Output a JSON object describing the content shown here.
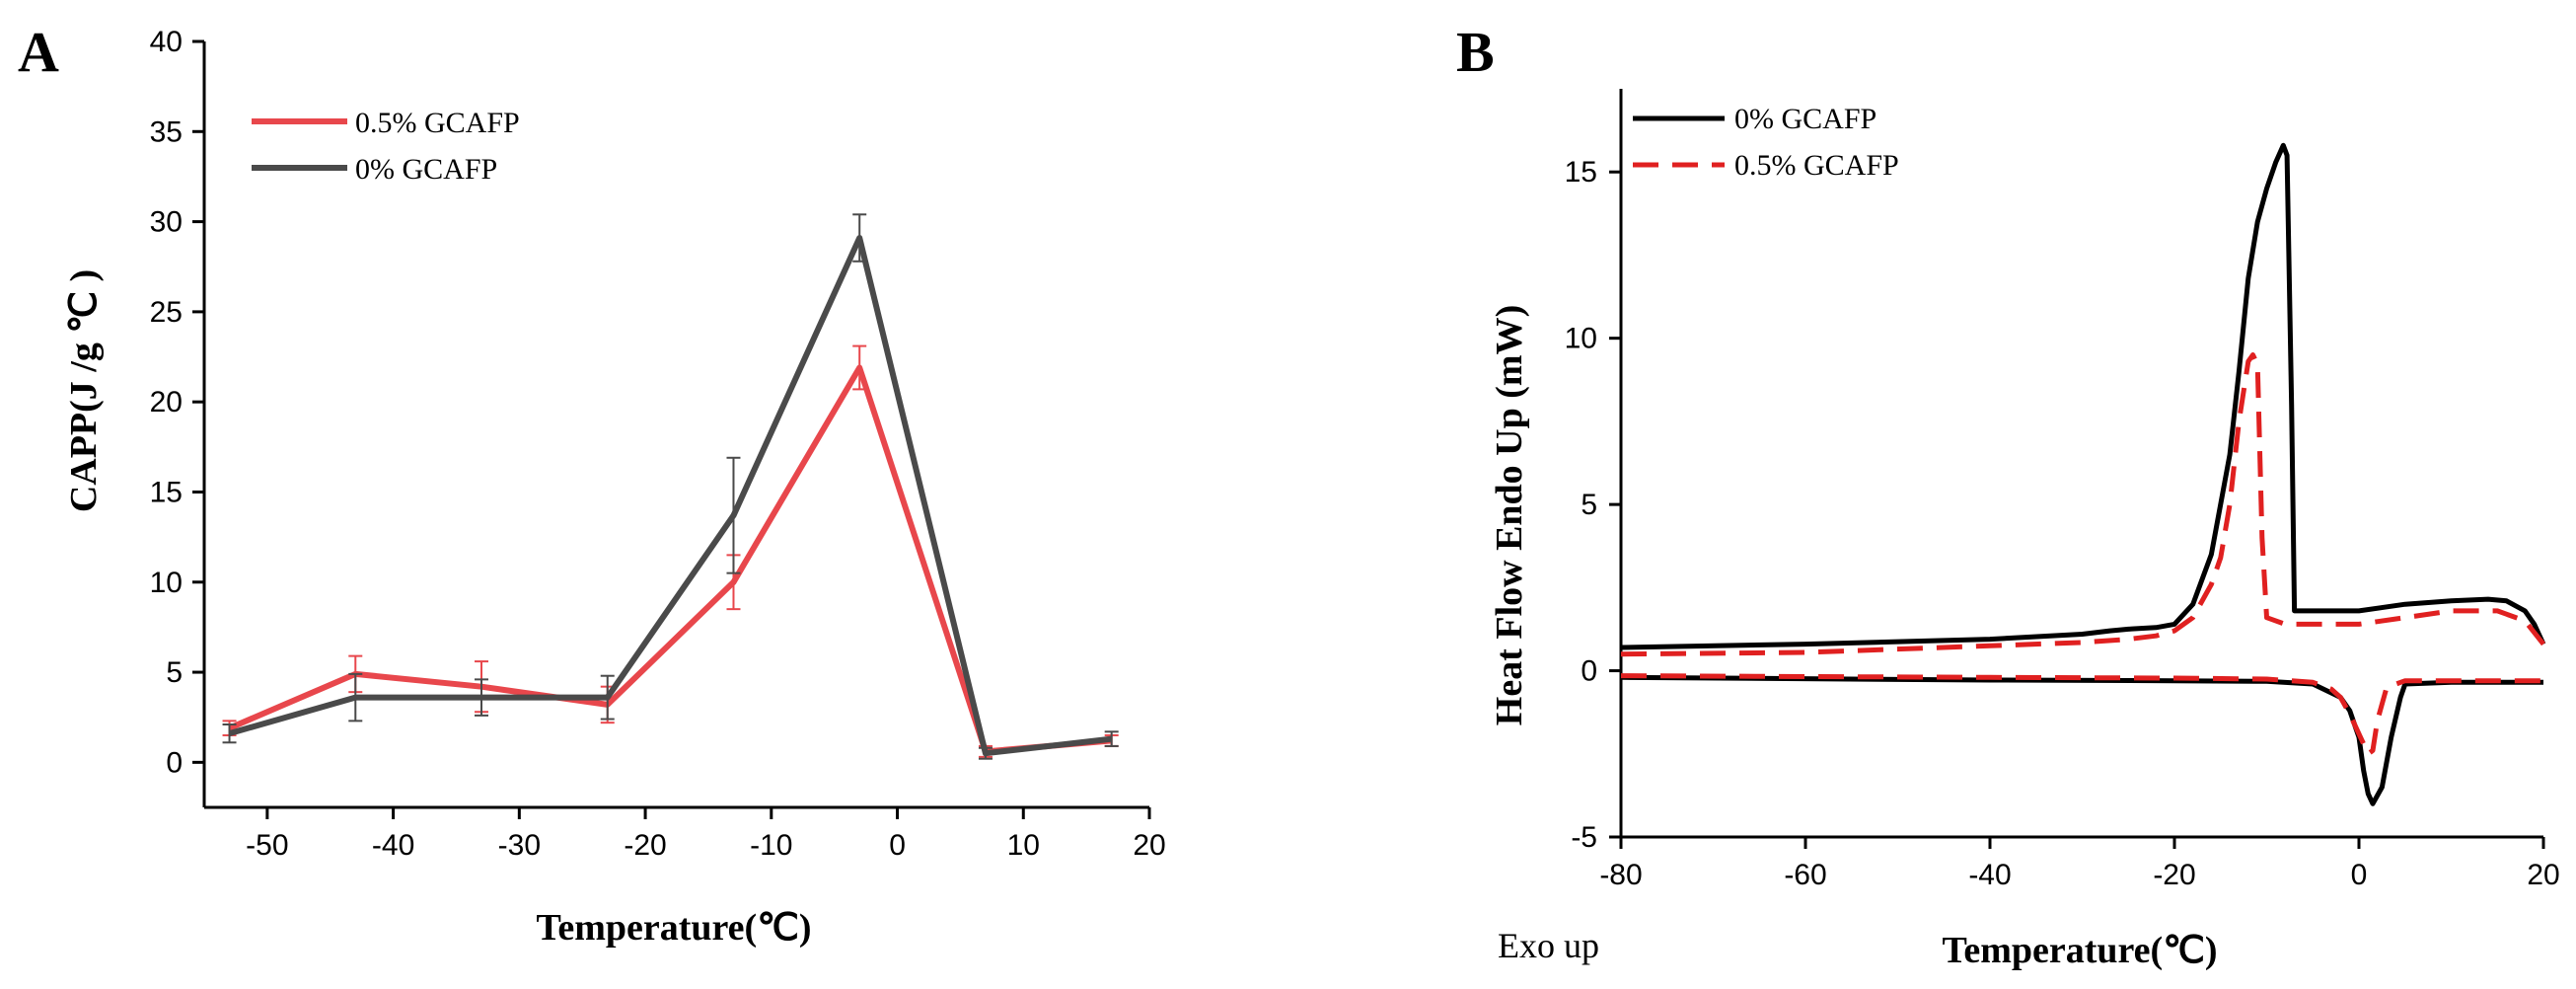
{
  "chart_data": [
    {
      "panel": "A",
      "type": "line",
      "title": "",
      "xlabel": "Temperature(℃)",
      "ylabel": "CAPP(J /g ℃ )",
      "xlim": [
        -55,
        20
      ],
      "ylim": [
        -2.5,
        40
      ],
      "xticks": [
        -50,
        -40,
        -30,
        -20,
        -10,
        0,
        10,
        20
      ],
      "yticks": [
        0,
        5,
        10,
        15,
        20,
        25,
        30,
        35,
        40
      ],
      "legend_position": "top-left",
      "series": [
        {
          "name": "0.5% GCAFP",
          "color": "#e8474c",
          "x": [
            -53,
            -43,
            -33,
            -23,
            -13,
            -3,
            7,
            17
          ],
          "y": [
            1.9,
            4.9,
            4.2,
            3.2,
            10.0,
            21.9,
            0.6,
            1.2
          ],
          "err": [
            0.4,
            1.0,
            1.4,
            1.0,
            1.5,
            1.2,
            0.3,
            0.3
          ]
        },
        {
          "name": "0%   GCAFP",
          "color": "#4a4a4a",
          "x": [
            -53,
            -43,
            -33,
            -23,
            -13,
            -3,
            7,
            17
          ],
          "y": [
            1.6,
            3.6,
            3.6,
            3.6,
            13.7,
            29.1,
            0.5,
            1.3
          ],
          "err": [
            0.5,
            1.3,
            1.0,
            1.2,
            3.2,
            1.3,
            0.3,
            0.4
          ]
        }
      ]
    },
    {
      "panel": "B",
      "type": "line",
      "title": "",
      "xlabel": "Temperature(℃)",
      "ylabel": "Heat Flow Endo Up (mW)",
      "annotation": "Exo up",
      "xlim": [
        -80,
        20
      ],
      "ylim": [
        -5,
        17.5
      ],
      "xticks": [
        -80,
        -60,
        -40,
        -20,
        0,
        20
      ],
      "yticks": [
        -5,
        0,
        5,
        10,
        15
      ],
      "legend_position": "top-left",
      "series": [
        {
          "name": "0% GCAFP",
          "color": "#000000",
          "dash": "solid",
          "heating": {
            "x": [
              -80,
              -60,
              -40,
              -30,
              -27,
              -25,
              -22,
              -20,
              -18,
              -16,
              -14,
              -13,
              -12,
              -11,
              -10,
              -9,
              -8.2,
              -7.8,
              -7.3,
              -7,
              0,
              5,
              10,
              14,
              16,
              18,
              19,
              20
            ],
            "y": [
              0.7,
              0.8,
              0.95,
              1.1,
              1.2,
              1.25,
              1.3,
              1.4,
              2.0,
              3.5,
              6.5,
              9.0,
              11.8,
              13.5,
              14.5,
              15.3,
              15.8,
              15.5,
              8.0,
              1.8,
              1.8,
              2.0,
              2.1,
              2.15,
              2.1,
              1.8,
              1.4,
              0.8
            ]
          },
          "cooling": {
            "x": [
              -80,
              -40,
              -20,
              -10,
              -5,
              -2,
              -1,
              0,
              0.5,
              1,
              1.5,
              2.5,
              3.5,
              4.5,
              5,
              10,
              20
            ],
            "y": [
              -0.2,
              -0.28,
              -0.3,
              -0.32,
              -0.4,
              -0.8,
              -1.2,
              -2.0,
              -3.0,
              -3.7,
              -4.0,
              -3.5,
              -2.0,
              -0.8,
              -0.4,
              -0.35,
              -0.35
            ]
          }
        },
        {
          "name": "0.5% GCAFP",
          "color": "#e02020",
          "dash": "dashed",
          "heating": {
            "x": [
              -80,
              -60,
              -40,
              -30,
              -25,
              -22,
              -20,
              -18,
              -16,
              -15,
              -14,
              -13,
              -12,
              -11.5,
              -11,
              -10.5,
              -10,
              -8,
              -5,
              0,
              5,
              10,
              15,
              18,
              20
            ],
            "y": [
              0.5,
              0.55,
              0.75,
              0.85,
              0.95,
              1.05,
              1.2,
              1.6,
              2.6,
              3.4,
              5.0,
              7.5,
              9.3,
              9.5,
              9.2,
              4.0,
              1.6,
              1.4,
              1.4,
              1.4,
              1.6,
              1.8,
              1.8,
              1.5,
              0.8
            ]
          },
          "cooling": {
            "x": [
              -80,
              -40,
              -20,
              -10,
              -5,
              -3,
              -2,
              -1,
              0,
              0.5,
              1,
              1.5,
              2,
              3,
              5,
              10,
              20
            ],
            "y": [
              -0.15,
              -0.2,
              -0.22,
              -0.25,
              -0.35,
              -0.55,
              -0.8,
              -1.3,
              -1.9,
              -2.2,
              -2.5,
              -2.4,
              -1.5,
              -0.5,
              -0.3,
              -0.3,
              -0.3
            ]
          }
        }
      ]
    }
  ]
}
